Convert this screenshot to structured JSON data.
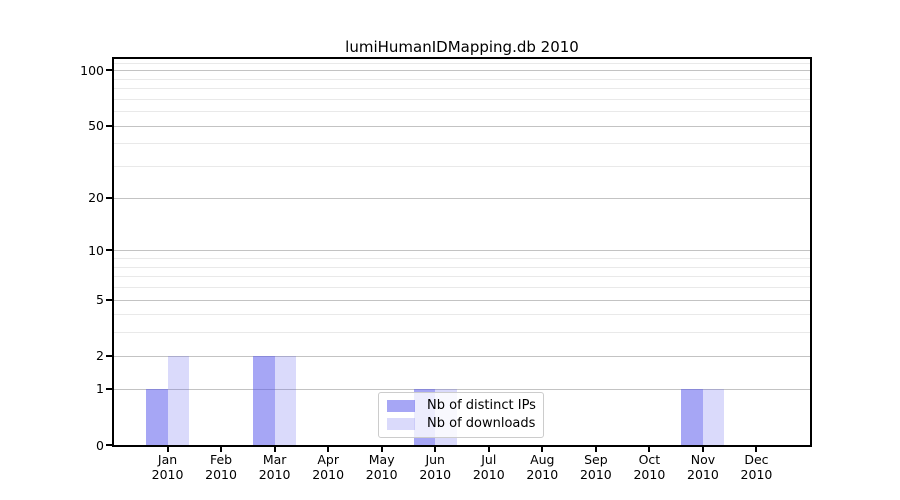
{
  "chart_data": {
    "type": "bar",
    "title": "lumiHumanIDMapping.db 2010",
    "year_label": "2010",
    "categories": [
      "Jan",
      "Feb",
      "Mar",
      "Apr",
      "May",
      "Jun",
      "Jul",
      "Aug",
      "Sep",
      "Oct",
      "Nov",
      "Dec"
    ],
    "series": [
      {
        "name": "Nb of distinct IPs",
        "color": "rgba(85,85,235,0.52)",
        "values": [
          1,
          0,
          2,
          0,
          0,
          1,
          0,
          0,
          0,
          0,
          1,
          0
        ]
      },
      {
        "name": "Nb of downloads",
        "color": "rgba(85,85,235,0.22)",
        "values": [
          2,
          0,
          2,
          0,
          0,
          1,
          0,
          0,
          0,
          0,
          1,
          0
        ]
      }
    ],
    "yscale": "log10(1+v)",
    "yticks": [
      0,
      1,
      2,
      5,
      10,
      20,
      50,
      100
    ],
    "minor_yticks": [
      3,
      4,
      6,
      7,
      8,
      9,
      30,
      40,
      60,
      70,
      80,
      90,
      110
    ],
    "ylim": [
      0,
      115
    ],
    "xlabel": "",
    "ylabel": "",
    "grid": "both",
    "legend_position": "lower center inside plot",
    "colors": {
      "spine": "#000000",
      "major_grid": "#c3c3c3",
      "minor_grid": "#e9e9e9",
      "background": "#ffffff"
    }
  }
}
